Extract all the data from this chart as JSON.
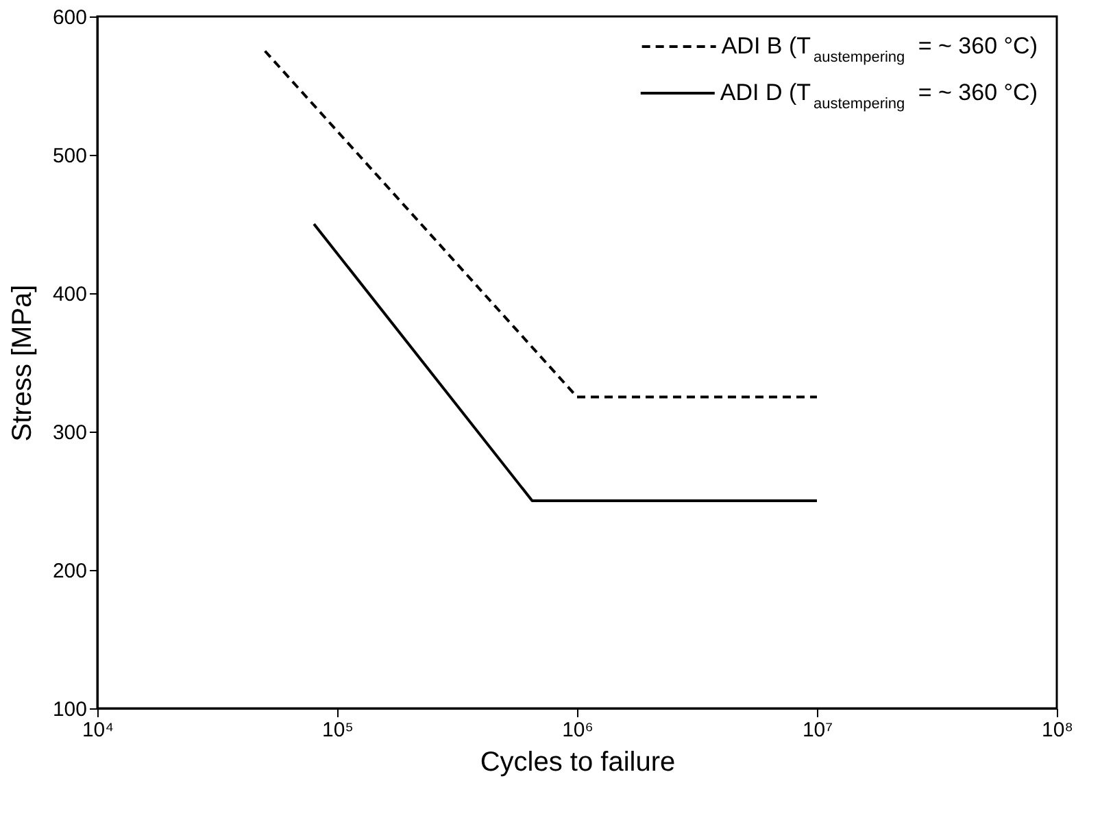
{
  "chart_data": {
    "type": "line",
    "xlabel": "Cycles to failure",
    "ylabel": "Stress [MPa]",
    "log": "x",
    "xlim": [
      10000,
      100000000
    ],
    "xticks": [
      {
        "value": 10000,
        "label": "10⁴"
      },
      {
        "value": 100000,
        "label": "10⁵"
      },
      {
        "value": 1000000,
        "label": "10⁶"
      },
      {
        "value": 10000000,
        "label": "10⁷"
      },
      {
        "value": 100000000,
        "label": "10⁸"
      }
    ],
    "ylim": [
      100,
      600
    ],
    "yticks": [
      100,
      200,
      300,
      400,
      500,
      600
    ],
    "grid": false,
    "legend": "top right",
    "series": [
      {
        "name": "ADI B (T$_{austempering}$ = ~ 360 °C)",
        "color": "#000000",
        "line_style": "dashed",
        "x": [
          50000,
          1000000,
          10000000
        ],
        "values": [
          575,
          325,
          325
        ]
      },
      {
        "name": "ADI D (T$_{austempering}$ = ~ 360 °C)",
        "color": "#000000",
        "line_style": "solid",
        "x": [
          80000,
          650000,
          10000000
        ],
        "values": [
          450,
          250,
          250
        ]
      }
    ]
  }
}
